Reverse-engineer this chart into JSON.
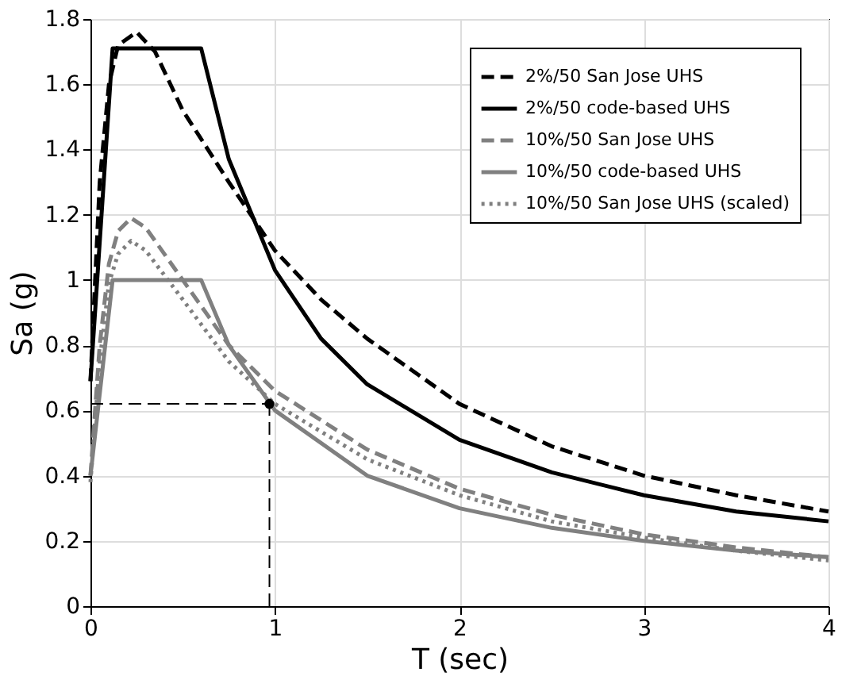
{
  "chart_data": {
    "type": "line",
    "xlabel": "T (sec)",
    "ylabel": "Sa (g)",
    "xlim": [
      0,
      4
    ],
    "ylim": [
      0,
      1.8
    ],
    "xticks": [
      0,
      1,
      2,
      3,
      4
    ],
    "yticks": [
      0,
      0.2,
      0.4,
      0.6,
      0.8,
      1,
      1.2,
      1.4,
      1.6,
      1.8
    ],
    "grid": true,
    "legend": "top right",
    "series": [
      {
        "name": "2%/50 San Jose UHS",
        "color": "#000000",
        "line_style": "dashed",
        "x": [
          0,
          0.05,
          0.1,
          0.15,
          0.25,
          0.35,
          0.5,
          0.75,
          1,
          1.25,
          1.5,
          2,
          2.5,
          3,
          3.5,
          4
        ],
        "values": [
          0.69,
          1.3,
          1.6,
          1.72,
          1.76,
          1.7,
          1.52,
          1.3,
          1.09,
          0.94,
          0.82,
          0.62,
          0.49,
          0.4,
          0.34,
          0.29
        ]
      },
      {
        "name": "2%/50 code-based UHS",
        "color": "#000000",
        "line_style": "solid",
        "x": [
          0,
          0.12,
          0.6,
          0.75,
          1,
          1.25,
          1.5,
          2,
          2.5,
          3,
          3.5,
          4
        ],
        "values": [
          0.69,
          1.71,
          1.71,
          1.37,
          1.03,
          0.82,
          0.68,
          0.51,
          0.41,
          0.34,
          0.29,
          0.26
        ]
      },
      {
        "name": "10%/50 San Jose UHS",
        "color": "#808080",
        "line_style": "dashed",
        "x": [
          0,
          0.05,
          0.1,
          0.15,
          0.22,
          0.3,
          0.5,
          0.75,
          1,
          1.5,
          2,
          2.5,
          3,
          3.5,
          4
        ],
        "values": [
          0.4,
          0.8,
          1.05,
          1.15,
          1.19,
          1.16,
          1.0,
          0.8,
          0.66,
          0.48,
          0.36,
          0.28,
          0.22,
          0.18,
          0.15
        ]
      },
      {
        "name": "10%/50 code-based UHS",
        "color": "#808080",
        "line_style": "solid",
        "x": [
          0,
          0.12,
          0.6,
          0.75,
          1,
          1.5,
          2,
          2.5,
          3,
          3.5,
          4
        ],
        "values": [
          0.4,
          1.0,
          1.0,
          0.8,
          0.6,
          0.4,
          0.3,
          0.24,
          0.2,
          0.17,
          0.15
        ]
      },
      {
        "name": "10%/50 San Jose UHS (scaled)",
        "color": "#808080",
        "line_style": "dotted",
        "x": [
          0,
          0.05,
          0.1,
          0.15,
          0.22,
          0.3,
          0.5,
          0.75,
          1,
          1.5,
          2,
          2.5,
          3,
          3.5,
          4
        ],
        "values": [
          0.38,
          0.75,
          0.99,
          1.08,
          1.12,
          1.09,
          0.94,
          0.75,
          0.62,
          0.45,
          0.34,
          0.26,
          0.21,
          0.17,
          0.14
        ]
      },
      {
        "color": "#000000",
        "line_style": "dashed",
        "x": [
          0,
          0.97
        ],
        "values": [
          0.62,
          0.62
        ]
      },
      {
        "color": "#000000",
        "line_style": "dashed",
        "x": [
          0.97,
          0.97
        ],
        "values": [
          0,
          0.62
        ]
      },
      {
        "type": "scatter",
        "color": "#000000",
        "marker": "circle",
        "x": [
          0.97
        ],
        "values": [
          0.62
        ]
      }
    ]
  }
}
